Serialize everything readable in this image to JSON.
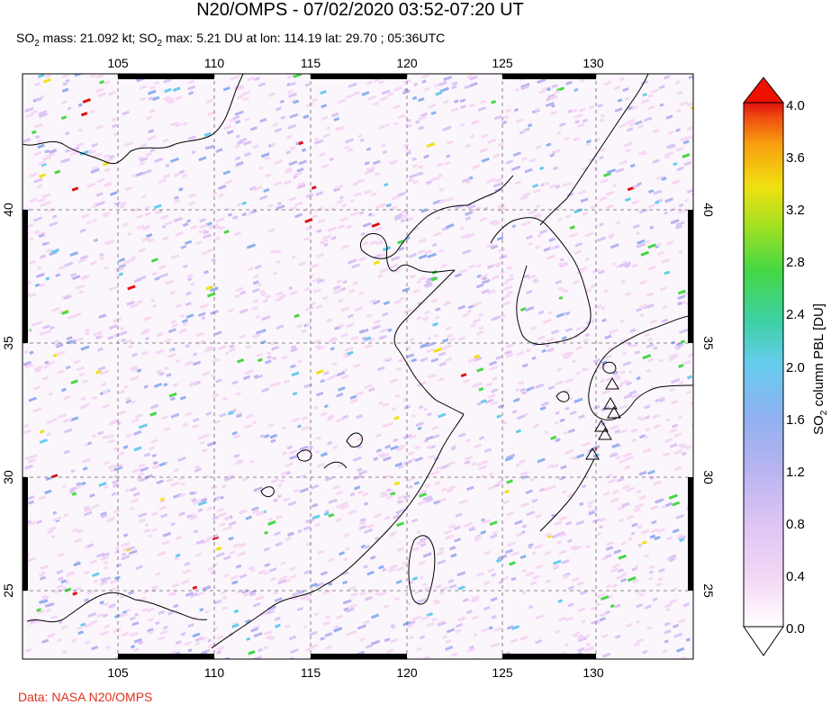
{
  "header": {
    "title": "N20/OMPS - 07/02/2020 03:52-07:20 UT",
    "subtitle_parts": [
      "SO",
      "2",
      " mass: 21.092 kt; SO",
      "2",
      " max: 5.21 DU at lon: 114.19 lat: 29.70 ; 05:36UTC"
    ]
  },
  "map": {
    "lon_ticks": [
      "105",
      "110",
      "115",
      "120",
      "125",
      "130"
    ],
    "lat_ticks": [
      "40",
      "35",
      "30",
      "25"
    ],
    "lon_range": [
      100,
      135
    ],
    "lat_range": [
      20,
      45
    ],
    "volcano_marker_icon": "triangle-icon"
  },
  "colorbar": {
    "label_parts": [
      "SO",
      "2",
      " column PBL [DU]"
    ],
    "ticks": [
      "4.0",
      "3.6",
      "3.2",
      "2.8",
      "2.4",
      "2.0",
      "1.6",
      "1.2",
      "0.8",
      "0.4",
      "0.0"
    ],
    "colors": [
      "#ffffff",
      "#f5d8f5",
      "#dcc4f5",
      "#b8b4f0",
      "#8fb0f0",
      "#66ccee",
      "#3ed0a8",
      "#44d844",
      "#a8e020",
      "#f0e010",
      "#f8a010",
      "#f05010",
      "#e01010"
    ],
    "overflow_color": "#ee1100"
  },
  "footer": {
    "credit": "Data: NASA N20/OMPS"
  }
}
